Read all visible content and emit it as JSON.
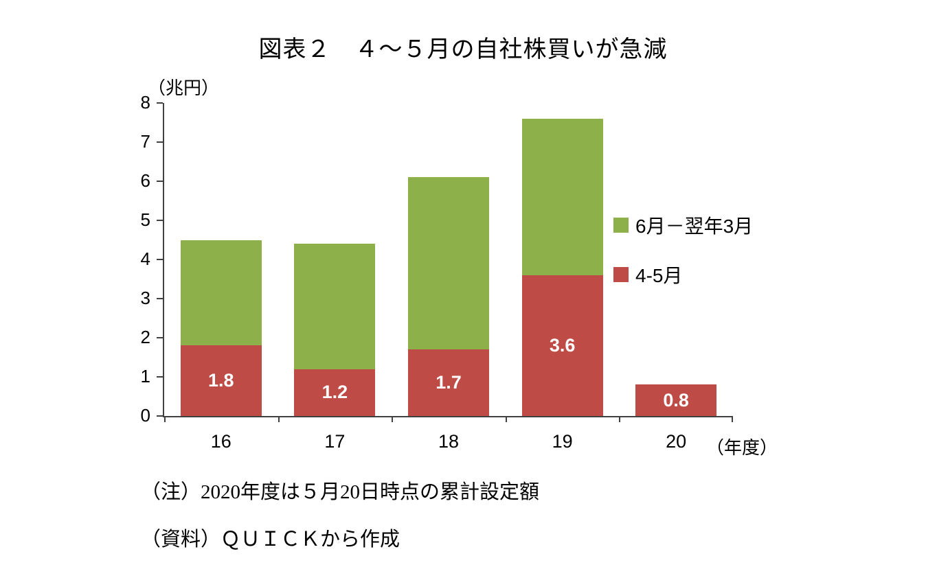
{
  "title": "図表２　４～５月の自社株買いが急減",
  "chart_data": {
    "type": "bar",
    "stacked": true,
    "title": "図表２　４～５月の自社株買いが急減",
    "unit_label": "（兆円）",
    "x_axis_suffix": "（年度）",
    "categories": [
      "16",
      "17",
      "18",
      "19",
      "20"
    ],
    "series": [
      {
        "name": "4-5月",
        "color": "#BF4B47",
        "values": [
          1.8,
          1.2,
          1.7,
          3.6,
          0.8
        ],
        "labels": [
          "1.8",
          "1.2",
          "1.7",
          "3.6",
          "0.8"
        ]
      },
      {
        "name": "6月－翌年3月",
        "color": "#8DB04A",
        "values": [
          2.7,
          3.2,
          4.4,
          4.0,
          0
        ],
        "labels": [
          null,
          null,
          null,
          null,
          null
        ]
      }
    ],
    "totals": [
      4.5,
      4.4,
      6.1,
      7.6,
      0.8
    ],
    "ylim": [
      0,
      8
    ],
    "yticks": [
      0,
      1,
      2,
      3,
      4,
      5,
      6,
      7,
      8
    ],
    "legend_position": "right-inside",
    "grid": false,
    "legend": [
      {
        "label": "6月－翌年3月",
        "color": "#8DB04A"
      },
      {
        "label": "4-5月",
        "color": "#BF4B47"
      }
    ]
  },
  "notes": {
    "note1": "（注）2020年度は５月20日時点の累計設定額",
    "note2": "（資料）ＱＵＩＣＫから作成"
  },
  "colors": {
    "axis": "#404040",
    "bar_red": "#BF4B47",
    "bar_green": "#8DB04A",
    "data_label": "#ffffff"
  }
}
